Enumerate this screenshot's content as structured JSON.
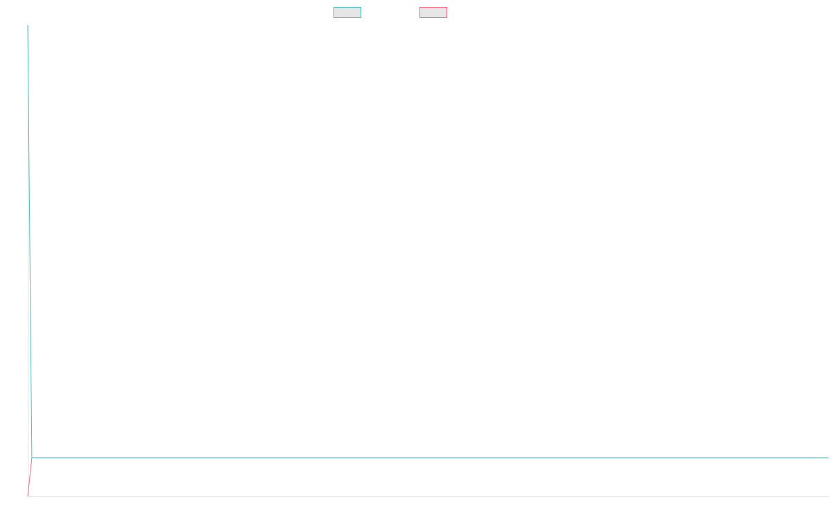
{
  "chart_data": {
    "type": "line",
    "title": "",
    "xlabel": "",
    "ylabel": "",
    "ylim": [
      0,
      100
    ],
    "grid": false,
    "legend_placement": "top",
    "series": [
      {
        "label": "",
        "color": "#4bc0c0",
        "values": [
          100,
          8.2,
          8.2,
          8.2,
          8.2,
          8.2,
          8.2,
          8.2,
          8.2,
          8.2,
          8.2,
          8.2,
          8.2,
          8.2,
          8.2,
          8.2,
          8.2,
          8.2,
          8.2,
          8.2,
          8.2,
          8.2,
          8.2,
          8.2,
          8.2,
          8.2,
          8.2,
          8.2,
          8.2,
          8.2,
          8.2,
          8.2,
          8.2,
          8.2,
          8.2,
          8.2,
          8.2,
          8.2,
          8.2,
          8.2,
          8.2,
          8.2,
          8.2,
          8.2,
          8.2,
          8.2,
          8.2,
          8.2,
          8.2,
          8.2,
          8.2,
          8.2,
          8.2,
          8.2,
          8.2,
          8.2,
          8.2,
          8.2,
          8.2,
          8.2,
          8.2,
          8.2,
          8.2,
          8.2,
          8.2,
          8.2,
          8.2,
          8.2,
          8.2,
          8.2,
          8.2,
          8.2,
          8.2,
          8.2,
          8.2,
          8.2,
          8.2,
          8.2,
          8.2,
          8.2,
          8.2,
          8.2,
          8.2,
          8.2,
          8.2,
          8.2,
          8.2,
          8.2,
          8.2,
          8.2,
          8.2,
          8.2,
          8.2,
          8.2,
          8.2,
          8.2,
          8.2,
          8.2,
          8.2,
          8.2,
          8.2,
          8.2,
          8.2,
          8.2,
          8.2,
          8.2,
          8.2,
          8.2,
          8.2,
          8.2,
          8.2,
          8.2,
          8.2,
          8.2,
          8.2,
          8.2,
          8.2,
          8.2,
          8.2,
          8.2,
          8.2,
          8.2,
          8.2,
          8.2,
          8.2,
          8.2,
          8.2,
          8.2,
          8.2,
          8.2,
          8.2,
          8.2,
          8.2,
          8.2,
          8.2,
          8.2,
          8.2,
          8.2,
          8.2,
          8.2,
          8.2,
          8.2,
          8.2,
          8.2,
          8.2,
          8.2,
          8.2,
          8.2,
          8.2,
          8.2,
          8.2,
          8.2,
          8.2,
          8.2,
          8.2,
          8.2,
          8.2,
          8.2,
          8.2,
          8.2,
          8.2,
          8.2,
          8.2,
          8.2,
          8.2,
          8.2,
          8.2,
          8.2,
          8.2,
          8.2,
          8.2,
          8.2,
          8.2,
          8.2,
          8.2,
          8.2,
          8.2,
          8.2,
          8.2,
          8.2,
          8.2,
          8.2,
          8.2,
          8.2,
          8.2,
          8.2,
          8.2,
          8.2,
          8.2,
          8.2,
          8.2,
          8.2,
          8.2,
          8.2,
          8.2,
          8.2,
          8.2
        ]
      },
      {
        "label": "",
        "color": "#ff6384",
        "values": [
          0,
          8.2,
          8.2,
          8.2,
          8.2,
          8.2,
          8.2,
          8.2,
          8.2,
          8.2,
          8.2,
          8.2,
          8.2,
          8.2,
          8.2,
          8.2,
          8.2,
          8.2,
          8.2,
          8.2,
          8.2,
          8.2,
          8.2,
          8.2,
          8.2,
          8.2,
          8.2,
          8.2,
          8.2,
          8.2,
          8.2,
          8.2,
          8.2,
          8.2,
          8.2,
          8.2,
          8.2,
          8.2,
          8.2,
          8.2,
          8.2,
          8.2,
          8.2,
          8.2,
          8.2,
          8.2,
          8.2,
          8.2,
          8.2,
          8.2,
          8.2,
          8.2,
          8.2,
          8.2,
          8.2,
          8.2,
          8.2,
          8.2,
          8.2,
          8.2,
          8.2,
          8.2,
          8.2,
          8.2,
          8.2,
          8.2,
          8.2,
          8.2,
          8.2,
          8.2,
          8.2,
          8.2,
          8.2,
          8.2,
          8.2,
          8.2,
          8.2,
          8.2,
          8.2,
          8.2,
          8.2,
          8.2,
          8.2,
          8.2,
          8.2,
          8.2,
          8.2,
          8.2,
          8.2,
          8.2,
          8.2,
          8.2,
          8.2,
          8.2,
          8.2,
          8.2,
          8.2,
          8.2,
          8.2,
          8.2,
          8.2,
          8.2,
          8.2,
          8.2,
          8.2,
          8.2,
          8.2,
          8.2,
          8.2,
          8.2,
          8.2,
          8.2,
          8.2,
          8.2,
          8.2,
          8.2,
          8.2,
          8.2,
          8.2,
          8.2,
          8.2,
          8.2,
          8.2,
          8.2,
          8.2,
          8.2,
          8.2,
          8.2,
          8.2,
          8.2,
          8.2,
          8.2,
          8.2,
          8.2,
          8.2,
          8.2,
          8.2,
          8.2,
          8.2,
          8.2,
          8.2,
          8.2,
          8.2,
          8.2,
          8.2,
          8.2,
          8.2,
          8.2,
          8.2,
          8.2,
          8.2,
          8.2,
          8.2,
          8.2,
          8.2,
          8.2,
          8.2,
          8.2,
          8.2,
          8.2,
          8.2,
          8.2,
          8.2,
          8.2,
          8.2,
          8.2,
          8.2,
          8.2,
          8.2,
          8.2,
          8.2,
          8.2,
          8.2,
          8.2,
          8.2,
          8.2,
          8.2,
          8.2,
          8.2,
          8.2,
          8.2,
          8.2,
          8.2,
          8.2,
          8.2,
          8.2,
          8.2,
          8.2,
          8.2,
          8.2,
          8.2,
          8.2,
          8.2,
          8.2,
          8.2
        ]
      }
    ]
  }
}
